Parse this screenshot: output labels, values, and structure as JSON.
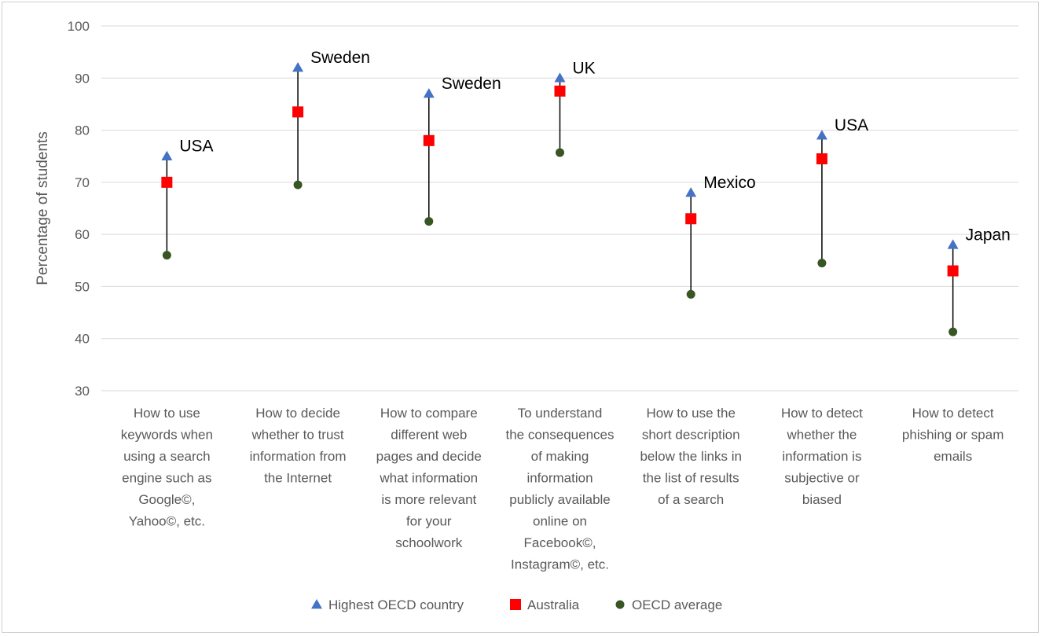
{
  "chart_data": {
    "type": "scatter",
    "ylabel": "Percentage of students",
    "ylim": [
      30,
      100
    ],
    "yticks": [
      30,
      40,
      50,
      60,
      70,
      80,
      90,
      100
    ],
    "grid": true,
    "legend_position": "bottom",
    "categories": [
      [
        "How to use",
        "keywords when",
        "using a search",
        "engine such as",
        "Google©,",
        "Yahoo©, etc."
      ],
      [
        "How to decide",
        "whether to trust",
        "information from",
        "the Internet"
      ],
      [
        "How to compare",
        "different web",
        "pages and decide",
        "what information",
        "is more relevant",
        "for your",
        "schoolwork"
      ],
      [
        "To understand",
        "the consequences",
        "of making",
        "information",
        "publicly available",
        "online on",
        "Facebook©,",
        "Instagram©, etc."
      ],
      [
        "How to use the",
        "short description",
        "below the links in",
        "the list of results",
        "of a search"
      ],
      [
        "How to detect",
        "whether the",
        "information is",
        "subjective or",
        "biased"
      ],
      [
        "How to detect",
        "phishing or spam",
        "emails"
      ]
    ],
    "series": [
      {
        "name": "Highest OECD country",
        "marker": "triangle",
        "color": "#4472C4",
        "values": [
          75,
          92,
          87,
          90,
          68,
          79,
          58
        ]
      },
      {
        "name": "Australia",
        "marker": "square",
        "color": "#FF0000",
        "values": [
          70,
          83.5,
          78,
          87.5,
          63,
          74.5,
          53
        ]
      },
      {
        "name": "OECD average",
        "marker": "circle",
        "color": "#375623",
        "values": [
          56,
          69.5,
          62.5,
          75.7,
          48.5,
          54.5,
          41.3
        ]
      }
    ],
    "annotations": [
      "USA",
      "Sweden",
      "Sweden",
      "UK",
      "Mexico",
      "USA",
      "Japan"
    ]
  }
}
